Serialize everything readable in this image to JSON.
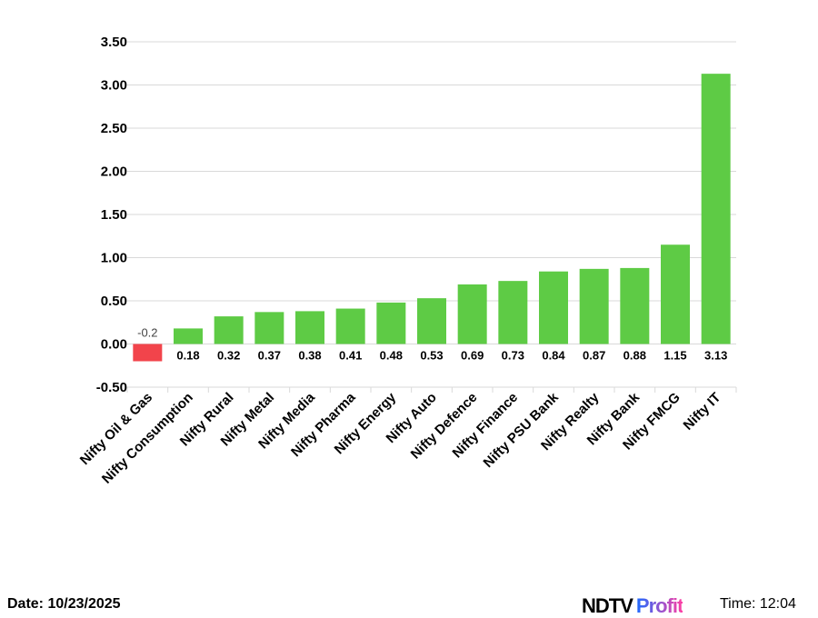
{
  "chart_data": {
    "type": "bar",
    "title": "",
    "xlabel": "",
    "ylabel": "",
    "categories": [
      "Nifty Oil & Gas",
      "Nifty Consumption",
      "Nifty Rural",
      "Nifty Metal",
      "Nifty Media",
      "Nifty Pharma",
      "Nifty Energy",
      "Nifty Auto",
      "Nifty Defence",
      "Nifty Finance",
      "Nifty PSU Bank",
      "Nifty Realty",
      "Nifty Bank",
      "Nifty FMCG",
      "Nifty IT"
    ],
    "values": [
      -0.2,
      0.18,
      0.32,
      0.37,
      0.38,
      0.41,
      0.48,
      0.53,
      0.69,
      0.73,
      0.84,
      0.87,
      0.88,
      1.15,
      3.13
    ],
    "data_labels": [
      "-0.2",
      "0.18",
      "0.32",
      "0.37",
      "0.38",
      "0.41",
      "0.48",
      "0.53",
      "0.69",
      "0.73",
      "0.84",
      "0.87",
      "0.88",
      "1.15",
      "3.13"
    ],
    "ylim": [
      -0.5,
      3.5
    ],
    "yticks": [
      "-0.50",
      "0.00",
      "0.50",
      "1.00",
      "1.50",
      "2.00",
      "2.50",
      "3.00",
      "3.50"
    ],
    "grid": true,
    "legend": "none",
    "colors": {
      "positive": "#5ecb45",
      "negative": "#f2444b",
      "grid": "#d9d9d9"
    }
  },
  "footer": {
    "date": "Date: 10/23/2025",
    "time": "Time: 12:04",
    "logo_ndtv": "NDTV",
    "logo_profit": "Profit"
  }
}
